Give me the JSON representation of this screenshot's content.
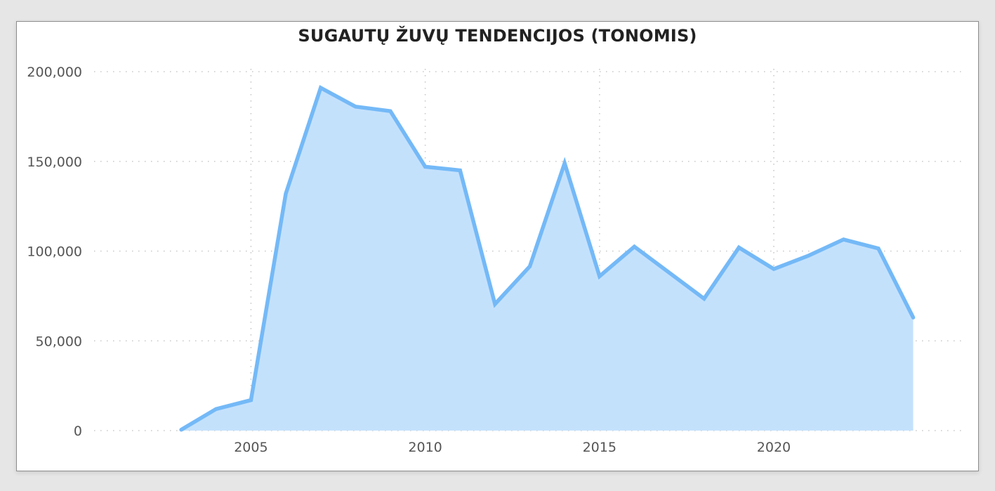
{
  "chart_data": {
    "type": "area",
    "title": "SUGAUTŲ ŽUVŲ TENDENCIJOS (TONOMIS)",
    "xlabel": "",
    "ylabel": "",
    "x": [
      2003,
      2004,
      2005,
      2006,
      2007,
      2008,
      2009,
      2010,
      2011,
      2012,
      2013,
      2014,
      2015,
      2016,
      2017,
      2018,
      2019,
      2020,
      2021,
      2022,
      2023,
      2024
    ],
    "series": [
      {
        "values": [
          500,
          12000,
          17000,
          132000,
          191000,
          180500,
          178000,
          147000,
          145000,
          70500,
          91500,
          149000,
          86000,
          102500,
          88000,
          73500,
          102000,
          90000,
          97500,
          106500,
          101500,
          63000
        ]
      }
    ],
    "xlim": [
      2000.5,
      2025.5
    ],
    "ylim": [
      0,
      200000
    ],
    "x_ticks": [
      2005,
      2010,
      2015,
      2020
    ],
    "x_tick_labels": [
      "2005",
      "2010",
      "2015",
      "2020"
    ],
    "y_ticks": [
      0,
      50000,
      100000,
      150000,
      200000
    ],
    "y_tick_labels": [
      "0",
      "50,000",
      "100,000",
      "150,000",
      "200,000"
    ],
    "grid": true,
    "legend": "none",
    "colors": {
      "line": "#74b9f7",
      "fill": "#c4e1fc",
      "grid": "#c8c8c8",
      "tick_text": "#555555"
    }
  }
}
